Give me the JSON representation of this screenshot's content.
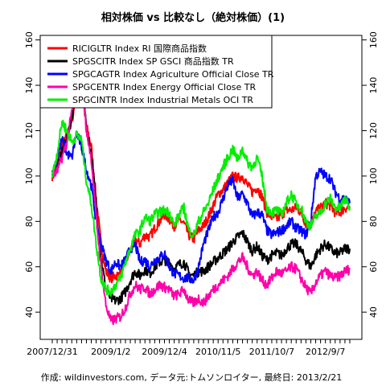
{
  "chart_data": {
    "type": "line",
    "title": "相対株価 vs 比較なし（絶対株価）(1)",
    "footer": "作成: wildinvestors.com, データ元:トムソンロイター, 最終日: 2013/2/21",
    "xlabel": "",
    "ylabel": "",
    "x_ticks": [
      "2007/12/31",
      "2009/1/2",
      "2009/12/4",
      "2010/11/5",
      "2011/10/7",
      "2012/9/7"
    ],
    "ylim": [
      28,
      162
    ],
    "y_ticks": [
      40,
      60,
      80,
      100,
      120,
      140,
      160
    ],
    "legend_position": "top-left",
    "grid": false,
    "x": [
      "2007-12-31",
      "2008-02-01",
      "2008-03-01",
      "2008-04-01",
      "2008-05-01",
      "2008-06-01",
      "2008-07-01",
      "2008-08-01",
      "2008-09-01",
      "2008-10-01",
      "2008-11-01",
      "2008-12-01",
      "2009-01-02",
      "2009-02-01",
      "2009-03-01",
      "2009-04-01",
      "2009-05-01",
      "2009-06-01",
      "2009-07-01",
      "2009-08-01",
      "2009-09-01",
      "2009-10-01",
      "2009-11-01",
      "2009-12-04",
      "2010-01-01",
      "2010-02-01",
      "2010-03-01",
      "2010-04-01",
      "2010-05-01",
      "2010-06-01",
      "2010-07-01",
      "2010-08-01",
      "2010-09-01",
      "2010-10-01",
      "2010-11-05",
      "2010-12-01",
      "2011-01-01",
      "2011-02-01",
      "2011-03-01",
      "2011-04-01",
      "2011-05-01",
      "2011-06-01",
      "2011-07-01",
      "2011-08-01",
      "2011-09-01",
      "2011-10-07",
      "2011-11-01",
      "2011-12-01",
      "2012-01-01",
      "2012-02-01",
      "2012-03-01",
      "2012-04-01",
      "2012-05-01",
      "2012-06-01",
      "2012-07-01",
      "2012-08-01",
      "2012-09-07",
      "2012-10-01",
      "2012-11-01",
      "2012-12-01",
      "2013-01-01",
      "2013-02-21"
    ],
    "series": [
      {
        "name": "RICIGLTR Index RI 国際商品指数",
        "color": "#ff0000",
        "values": [
          100,
          104,
          113,
          118,
          124,
          136,
          143,
          122,
          113,
          90,
          70,
          58,
          55,
          56,
          57,
          62,
          67,
          72,
          70,
          74,
          73,
          77,
          80,
          83,
          81,
          78,
          81,
          79,
          74,
          72,
          76,
          78,
          82,
          87,
          92,
          94,
          97,
          100,
          99,
          100,
          96,
          93,
          95,
          91,
          84,
          82,
          81,
          83,
          85,
          85,
          86,
          84,
          79,
          78,
          84,
          86,
          88,
          87,
          84,
          84,
          86,
          86
        ]
      },
      {
        "name": "SPGSCITR Index SP GSCI 商品指数 TR",
        "color": "#000000",
        "values": [
          100,
          104,
          111,
          116,
          126,
          137,
          142,
          121,
          110,
          87,
          64,
          50,
          46,
          45,
          46,
          49,
          54,
          58,
          56,
          59,
          57,
          60,
          62,
          63,
          62,
          59,
          61,
          62,
          57,
          56,
          58,
          58,
          60,
          62,
          64,
          66,
          68,
          71,
          73,
          75,
          71,
          67,
          69,
          65,
          63,
          65,
          66,
          65,
          68,
          70,
          70,
          67,
          63,
          60,
          65,
          68,
          70,
          68,
          66,
          66,
          68,
          68
        ]
      },
      {
        "name": "SPGCAGTR Index Agriculture Official Close TR",
        "color": "#0000ff",
        "values": [
          100,
          108,
          116,
          110,
          108,
          119,
          113,
          103,
          96,
          80,
          70,
          63,
          58,
          62,
          60,
          63,
          68,
          70,
          62,
          63,
          60,
          63,
          64,
          66,
          60,
          57,
          56,
          55,
          55,
          54,
          60,
          70,
          76,
          82,
          84,
          90,
          96,
          98,
          90,
          92,
          88,
          82,
          84,
          83,
          76,
          74,
          75,
          76,
          78,
          80,
          77,
          76,
          74,
          80,
          100,
          102,
          100,
          99,
          93,
          90,
          90,
          88
        ]
      },
      {
        "name": "SPGCENTR Index Energy Official Close TR",
        "color": "#ff00aa",
        "values": [
          100,
          102,
          108,
          115,
          128,
          140,
          145,
          120,
          108,
          82,
          60,
          43,
          36,
          37,
          38,
          42,
          48,
          52,
          50,
          51,
          48,
          50,
          52,
          51,
          50,
          47,
          48,
          50,
          45,
          44,
          46,
          44,
          47,
          50,
          52,
          54,
          56,
          59,
          62,
          64,
          60,
          56,
          58,
          54,
          52,
          55,
          58,
          57,
          58,
          60,
          59,
          55,
          51,
          48,
          53,
          56,
          58,
          56,
          55,
          56,
          58,
          59
        ]
      },
      {
        "name": "SPGCINTR Index Industrial Metals OCI TR",
        "color": "#00ee00",
        "values": [
          100,
          110,
          124,
          120,
          115,
          118,
          116,
          98,
          88,
          70,
          55,
          50,
          49,
          52,
          55,
          62,
          68,
          74,
          76,
          82,
          80,
          83,
          84,
          85,
          84,
          78,
          83,
          86,
          76,
          74,
          80,
          84,
          88,
          94,
          99,
          104,
          108,
          112,
          107,
          112,
          106,
          104,
          108,
          100,
          86,
          84,
          85,
          83,
          88,
          92,
          88,
          86,
          80,
          78,
          82,
          84,
          88,
          90,
          86,
          86,
          90,
          86
        ]
      }
    ]
  }
}
